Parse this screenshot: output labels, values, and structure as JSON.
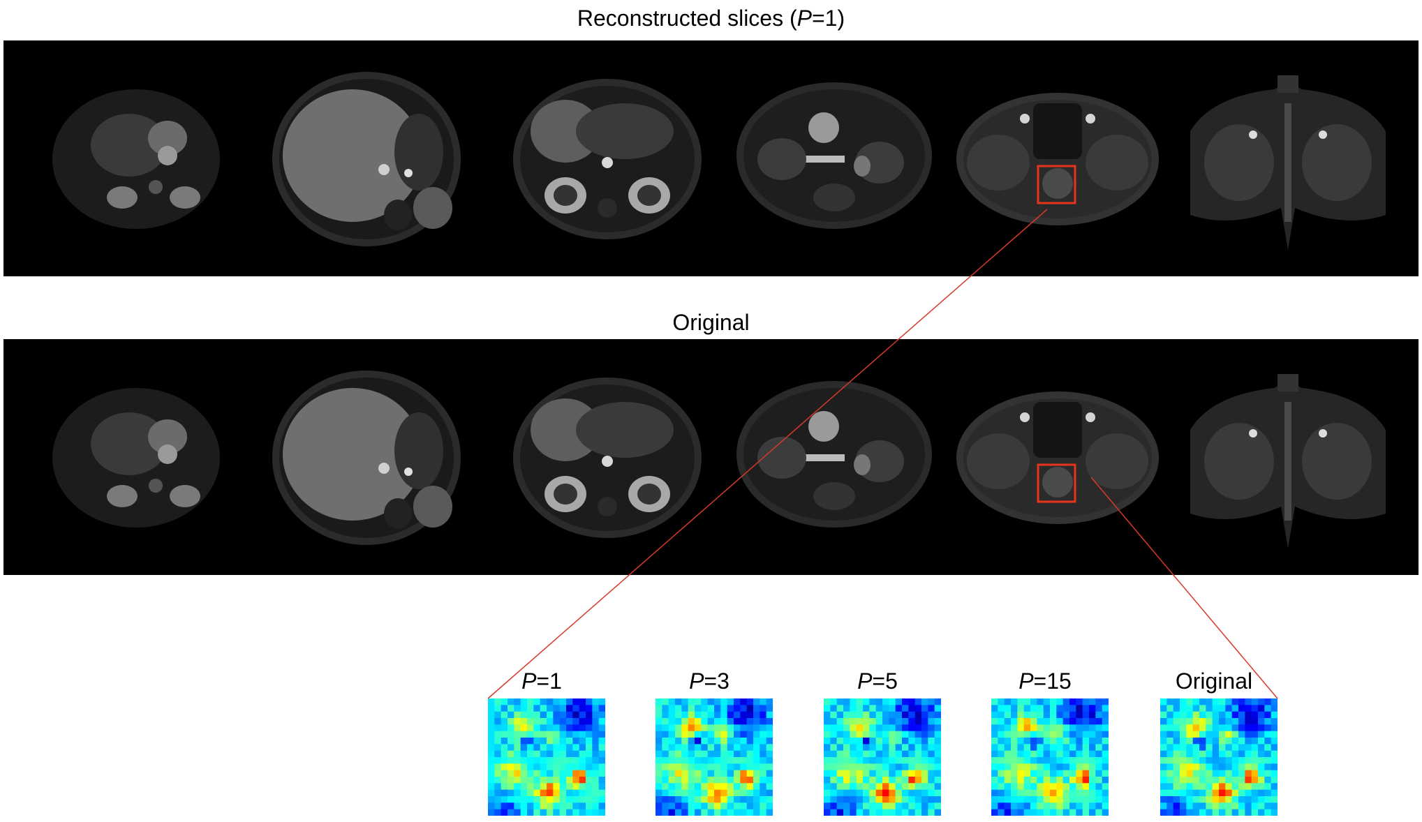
{
  "titles": {
    "reconstructed_prefix": "Reconstructed slices (",
    "reconstructed_var": "P",
    "reconstructed_suffix": "=1)",
    "original": "Original"
  },
  "colors": {
    "background": "#000000",
    "roi_box": "#e8341c",
    "zoom_line": "#d9382a"
  },
  "zoom_panels": [
    {
      "var": "P",
      "text": "=1"
    },
    {
      "var": "P",
      "text": "=3"
    },
    {
      "var": "P",
      "text": "=5"
    },
    {
      "var": "P",
      "text": "=15"
    },
    {
      "var": "",
      "text": "Original"
    }
  ]
}
